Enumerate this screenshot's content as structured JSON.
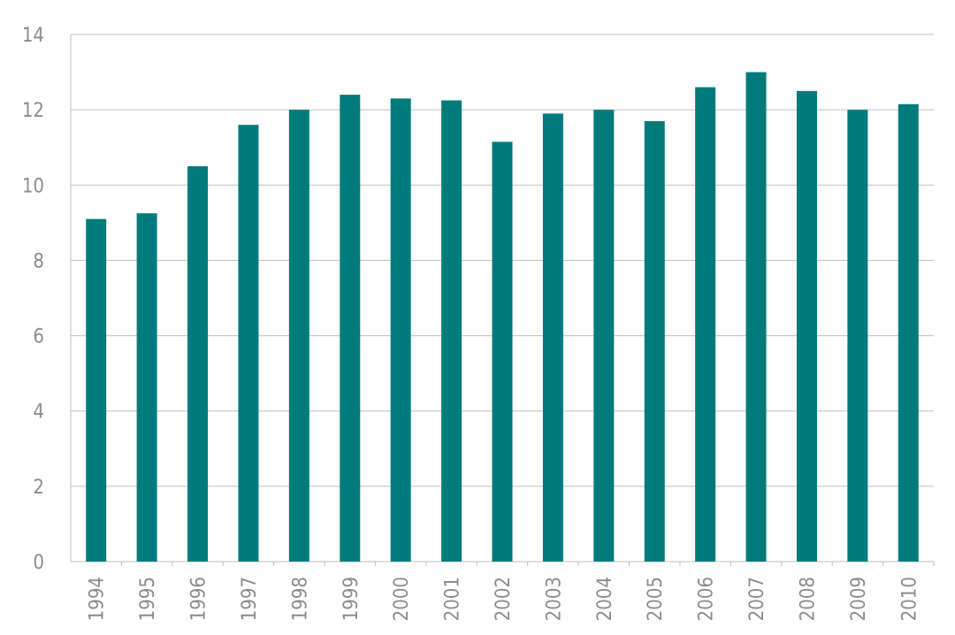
{
  "chart_data": {
    "type": "bar",
    "categories": [
      "1994",
      "1995",
      "1996",
      "1997",
      "1998",
      "1999",
      "2000",
      "2001",
      "2002",
      "2003",
      "2004",
      "2005",
      "2006",
      "2007",
      "2008",
      "2009",
      "2010"
    ],
    "values": [
      9.1,
      9.25,
      10.5,
      11.6,
      12.0,
      12.4,
      12.3,
      12.25,
      11.15,
      11.9,
      12.0,
      11.7,
      12.6,
      13.0,
      12.5,
      12.0,
      12.15
    ],
    "ylim": [
      0,
      14
    ],
    "yticks": [
      0,
      2,
      4,
      6,
      8,
      10,
      12,
      14
    ],
    "grid": true,
    "bar_color": "#007b7b",
    "grid_color": "#bfbfbf",
    "tick_color": "#8c8c8c"
  }
}
